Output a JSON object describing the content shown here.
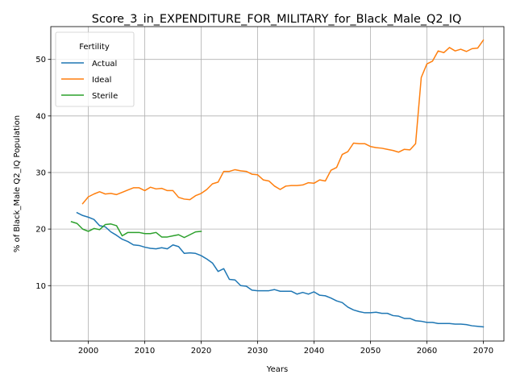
{
  "chart_data": {
    "type": "line",
    "title": "Score_3_in_EXPENDITURE_FOR_MILITARY_for_Black_Male_Q2_IQ",
    "xlabel": "Years",
    "ylabel": "% of Black_Male Q2_IQ Population",
    "xlim": [
      1993.35,
      2073.65
    ],
    "ylim": [
      0.2,
      55.8
    ],
    "xticks": [
      2000,
      2010,
      2020,
      2030,
      2040,
      2050,
      2060,
      2070
    ],
    "yticks": [
      10,
      20,
      30,
      40,
      50
    ],
    "grid": true,
    "legend": {
      "title": "Fertility",
      "placement": "top-left"
    },
    "series": [
      {
        "name": "Actual",
        "color": "#1f77b4",
        "x": [
          1998,
          1999,
          2000,
          2001,
          2002,
          2003,
          2004,
          2005,
          2006,
          2007,
          2008,
          2009,
          2010,
          2011,
          2012,
          2013,
          2014,
          2015,
          2016,
          2017,
          2018,
          2019,
          2020,
          2021,
          2022,
          2023,
          2024,
          2025,
          2026,
          2027,
          2028,
          2029,
          2030,
          2031,
          2032,
          2033,
          2034,
          2035,
          2036,
          2037,
          2038,
          2039,
          2040,
          2041,
          2042,
          2043,
          2044,
          2045,
          2046,
          2047,
          2048,
          2049,
          2050,
          2051,
          2052,
          2053,
          2054,
          2055,
          2056,
          2057,
          2058,
          2059,
          2060,
          2061,
          2062,
          2063,
          2064,
          2065,
          2066,
          2067,
          2068,
          2069,
          2070
        ],
        "values": [
          22.9,
          22.4,
          22.1,
          21.7,
          20.6,
          20.4,
          19.5,
          18.9,
          18.2,
          17.8,
          17.2,
          17.1,
          16.8,
          16.6,
          16.5,
          16.7,
          16.5,
          17.2,
          16.9,
          15.7,
          15.8,
          15.7,
          15.3,
          14.7,
          14.0,
          12.5,
          13.0,
          11.1,
          11.0,
          10.0,
          9.9,
          9.2,
          9.1,
          9.1,
          9.1,
          9.3,
          9.0,
          9.0,
          9.0,
          8.5,
          8.8,
          8.5,
          8.9,
          8.3,
          8.2,
          7.8,
          7.3,
          7.0,
          6.2,
          5.7,
          5.4,
          5.2,
          5.2,
          5.3,
          5.1,
          5.1,
          4.7,
          4.6,
          4.2,
          4.2,
          3.8,
          3.7,
          3.5,
          3.5,
          3.3,
          3.3,
          3.3,
          3.2,
          3.2,
          3.1,
          2.9,
          2.8,
          2.7
        ]
      },
      {
        "name": "Ideal",
        "color": "#ff7f0e",
        "x": [
          1999,
          2000,
          2001,
          2002,
          2003,
          2004,
          2005,
          2006,
          2007,
          2008,
          2009,
          2010,
          2011,
          2012,
          2013,
          2014,
          2015,
          2016,
          2017,
          2018,
          2019,
          2020,
          2021,
          2022,
          2023,
          2024,
          2025,
          2026,
          2027,
          2028,
          2029,
          2030,
          2031,
          2032,
          2033,
          2034,
          2035,
          2036,
          2037,
          2038,
          2039,
          2040,
          2041,
          2042,
          2043,
          2044,
          2045,
          2046,
          2047,
          2048,
          2049,
          2050,
          2051,
          2052,
          2053,
          2054,
          2055,
          2056,
          2057,
          2058,
          2059,
          2060,
          2061,
          2062,
          2063,
          2064,
          2065,
          2066,
          2067,
          2068,
          2069,
          2070
        ],
        "values": [
          24.5,
          25.7,
          26.2,
          26.6,
          26.2,
          26.3,
          26.1,
          26.5,
          26.9,
          27.3,
          27.3,
          26.8,
          27.4,
          27.1,
          27.2,
          26.8,
          26.8,
          25.6,
          25.3,
          25.2,
          25.9,
          26.3,
          27.0,
          28.0,
          28.3,
          30.2,
          30.2,
          30.5,
          30.3,
          30.2,
          29.7,
          29.6,
          28.7,
          28.5,
          27.6,
          27.0,
          27.6,
          27.7,
          27.7,
          27.8,
          28.2,
          28.1,
          28.7,
          28.5,
          30.4,
          30.9,
          33.2,
          33.7,
          35.2,
          35.1,
          35.1,
          34.6,
          34.4,
          34.3,
          34.1,
          33.9,
          33.6,
          34.1,
          34.0,
          35.1,
          46.8,
          49.2,
          49.7,
          51.5,
          51.2,
          52.1,
          51.5,
          51.8,
          51.4,
          51.9,
          52.0,
          53.4
        ]
      },
      {
        "name": "Sterile",
        "color": "#2ca02c",
        "x": [
          1997,
          1998,
          1999,
          2000,
          2001,
          2002,
          2003,
          2004,
          2005,
          2006,
          2007,
          2008,
          2009,
          2010,
          2011,
          2012,
          2013,
          2014,
          2015,
          2016,
          2017,
          2018,
          2019,
          2020
        ],
        "values": [
          21.3,
          21.0,
          20.0,
          19.6,
          20.1,
          19.9,
          20.8,
          20.9,
          20.6,
          18.8,
          19.4,
          19.4,
          19.4,
          19.2,
          19.2,
          19.4,
          18.6,
          18.6,
          18.8,
          19.0,
          18.5,
          19.0,
          19.5,
          19.6
        ]
      }
    ]
  }
}
